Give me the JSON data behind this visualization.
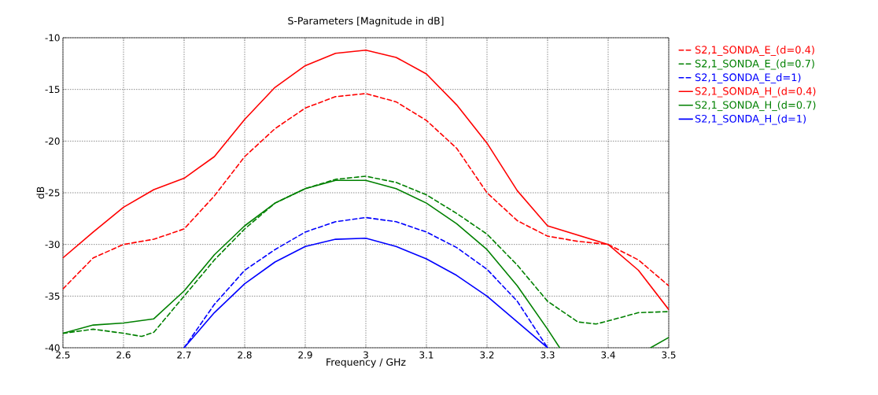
{
  "chart_data": {
    "type": "line",
    "title": "S-Parameters [Magnitude in dB]",
    "xlabel": "Frequency / GHz",
    "ylabel": "dB",
    "xlim": [
      2.5,
      3.5
    ],
    "ylim": [
      -40,
      -10
    ],
    "xticks": [
      2.5,
      2.6,
      2.7,
      2.8,
      2.9,
      3,
      3.1,
      3.2,
      3.3,
      3.4,
      3.5
    ],
    "yticks": [
      -40,
      -35,
      -30,
      -25,
      -20,
      -15,
      -10
    ],
    "grid": true,
    "legend": "right",
    "marker": "none",
    "series": [
      {
        "name": "S2,1_SONDA_E_(d=0.4)",
        "color": "#ff0000",
        "line_style": "dashed",
        "x": [
          2.5,
          2.55,
          2.6,
          2.65,
          2.7,
          2.75,
          2.8,
          2.85,
          2.9,
          2.95,
          3.0,
          3.05,
          3.1,
          3.15,
          3.2,
          3.25,
          3.3,
          3.35,
          3.4,
          3.45,
          3.5
        ],
        "values": [
          -34.3,
          -31.3,
          -30.0,
          -29.5,
          -28.5,
          -25.3,
          -21.5,
          -18.8,
          -16.8,
          -15.7,
          -15.4,
          -16.2,
          -18.0,
          -20.7,
          -25.0,
          -27.7,
          -29.2,
          -29.7,
          -30.0,
          -31.5,
          -34.0
        ]
      },
      {
        "name": "S2,1_SONDA_E_(d=0.7)",
        "color": "#008000",
        "line_style": "dashed",
        "x": [
          2.5,
          2.55,
          2.6,
          2.63,
          2.65,
          2.7,
          2.75,
          2.8,
          2.85,
          2.9,
          2.95,
          3.0,
          3.05,
          3.1,
          3.15,
          3.2,
          3.25,
          3.3,
          3.35,
          3.38,
          3.4,
          3.45,
          3.5
        ],
        "values": [
          -38.6,
          -38.2,
          -38.6,
          -38.9,
          -38.5,
          -35.0,
          -31.5,
          -28.5,
          -26.0,
          -24.6,
          -23.7,
          -23.4,
          -24.0,
          -25.2,
          -27.0,
          -29.0,
          -32.0,
          -35.5,
          -37.5,
          -37.7,
          -37.4,
          -36.6,
          -36.5
        ]
      },
      {
        "name": "S2,1_SONDA_E_d=1)",
        "color": "#0000ff",
        "line_style": "dashed",
        "x": [
          2.7,
          2.75,
          2.8,
          2.85,
          2.9,
          2.95,
          3.0,
          3.05,
          3.1,
          3.15,
          3.2,
          3.25,
          3.3
        ],
        "values": [
          -40.0,
          -35.8,
          -32.5,
          -30.5,
          -28.8,
          -27.8,
          -27.4,
          -27.8,
          -28.8,
          -30.3,
          -32.4,
          -35.5,
          -40.0
        ]
      },
      {
        "name": "S2,1_SONDA_H_(d=0.4)",
        "color": "#ff0000",
        "line_style": "solid",
        "x": [
          2.5,
          2.55,
          2.6,
          2.65,
          2.7,
          2.75,
          2.8,
          2.85,
          2.9,
          2.95,
          3.0,
          3.05,
          3.1,
          3.15,
          3.2,
          3.25,
          3.3,
          3.35,
          3.4,
          3.45,
          3.5
        ],
        "values": [
          -31.3,
          -28.8,
          -26.4,
          -24.7,
          -23.6,
          -21.5,
          -17.9,
          -14.8,
          -12.7,
          -11.5,
          -11.2,
          -11.9,
          -13.5,
          -16.5,
          -20.2,
          -24.8,
          -28.2,
          -29.1,
          -30.0,
          -32.5,
          -36.3
        ]
      },
      {
        "name": "S2,1_SONDA_H_(d=0.7)",
        "color": "#008000",
        "line_style": "solid",
        "x": [
          2.5,
          2.55,
          2.6,
          2.65,
          2.7,
          2.75,
          2.8,
          2.85,
          2.9,
          2.95,
          3.0,
          3.05,
          3.1,
          3.15,
          3.2,
          3.25,
          3.3,
          3.32,
          3.4,
          3.47,
          3.5
        ],
        "values": [
          -38.6,
          -37.8,
          -37.6,
          -37.2,
          -34.5,
          -31.0,
          -28.2,
          -26.0,
          -24.6,
          -23.8,
          -23.8,
          -24.6,
          -26.0,
          -28.0,
          -30.5,
          -34.0,
          -38.2,
          -40.0,
          null,
          -40.0,
          -39.0
        ]
      },
      {
        "name": "S2,1_SONDA_H_(d=1)",
        "color": "#0000ff",
        "line_style": "solid",
        "x": [
          2.7,
          2.75,
          2.8,
          2.85,
          2.9,
          2.95,
          3.0,
          3.05,
          3.1,
          3.15,
          3.2,
          3.25,
          3.3
        ],
        "values": [
          -40.0,
          -36.6,
          -33.8,
          -31.7,
          -30.2,
          -29.5,
          -29.4,
          -30.2,
          -31.4,
          -33.0,
          -35.0,
          -37.5,
          -40.0
        ]
      }
    ]
  }
}
